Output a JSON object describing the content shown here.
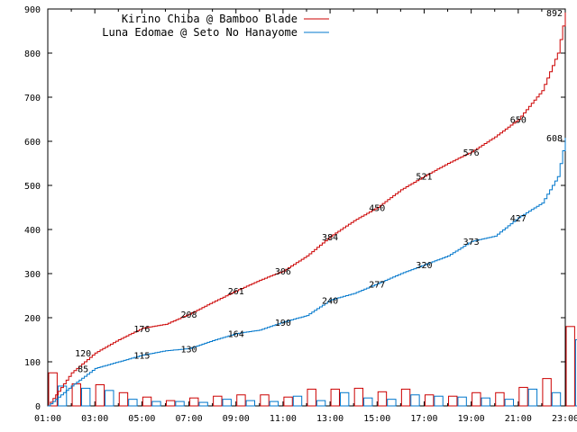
{
  "chart_data": {
    "type": "line",
    "title": "",
    "xlabel": "",
    "ylabel": "",
    "ylim": [
      0,
      900
    ],
    "yticks": [
      0,
      100,
      200,
      300,
      400,
      500,
      600,
      700,
      800,
      900
    ],
    "xticks": [
      "01:00",
      "03:00",
      "05:00",
      "07:00",
      "09:00",
      "11:00",
      "13:00",
      "15:00",
      "17:00",
      "19:00",
      "21:00",
      "23:00"
    ],
    "grid": false,
    "legend_position": "top-left",
    "colors": {
      "series1": "#cc0000",
      "series2": "#0077cc"
    },
    "series": [
      {
        "name": "Kirino Chiba @ Bamboo Blade",
        "cumulative": {
          "x": [
            "01:00",
            "02:00",
            "03:00",
            "04:00",
            "05:00",
            "06:00",
            "07:00",
            "08:00",
            "09:00",
            "10:00",
            "11:00",
            "12:00",
            "13:00",
            "14:00",
            "15:00",
            "16:00",
            "17:00",
            "18:00",
            "19:00",
            "20:00",
            "21:00",
            "22:00",
            "22:40",
            "23:00"
          ],
          "y": [
            0,
            75,
            120,
            150,
            176,
            185,
            208,
            235,
            261,
            285,
            306,
            340,
            384,
            420,
            450,
            490,
            521,
            550,
            576,
            610,
            650,
            715,
            800,
            892
          ]
        },
        "bars": [
          75,
          50,
          48,
          30,
          20,
          12,
          18,
          22,
          25,
          25,
          20,
          38,
          38,
          40,
          32,
          38,
          25,
          22,
          30,
          30,
          42,
          62,
          180
        ]
      },
      {
        "name": "Luna Edomae @ Seto No Hanayome",
        "cumulative": {
          "x": [
            "01:00",
            "02:00",
            "03:00",
            "04:00",
            "05:00",
            "06:00",
            "07:00",
            "08:00",
            "09:00",
            "10:00",
            "11:00",
            "12:00",
            "13:00",
            "14:00",
            "15:00",
            "16:00",
            "17:00",
            "18:00",
            "19:00",
            "20:00",
            "21:00",
            "22:00",
            "22:40",
            "23:00"
          ],
          "y": [
            0,
            45,
            85,
            100,
            115,
            125,
            130,
            148,
            164,
            172,
            190,
            205,
            240,
            255,
            277,
            300,
            320,
            340,
            373,
            385,
            427,
            460,
            520,
            608
          ]
        },
        "bars": [
          45,
          40,
          35,
          15,
          10,
          10,
          8,
          15,
          12,
          10,
          22,
          12,
          30,
          18,
          15,
          25,
          22,
          20,
          18,
          15,
          38,
          30,
          150
        ]
      }
    ],
    "annotations": [
      {
        "series": 0,
        "x": "02:30",
        "value": "120"
      },
      {
        "series": 0,
        "x": "05:00",
        "value": "176"
      },
      {
        "series": 0,
        "x": "07:00",
        "value": "208"
      },
      {
        "series": 0,
        "x": "09:00",
        "value": "261"
      },
      {
        "series": 0,
        "x": "11:00",
        "value": "306"
      },
      {
        "series": 0,
        "x": "13:00",
        "value": "384"
      },
      {
        "series": 0,
        "x": "15:00",
        "value": "450"
      },
      {
        "series": 0,
        "x": "17:00",
        "value": "521"
      },
      {
        "series": 0,
        "x": "19:00",
        "value": "576"
      },
      {
        "series": 0,
        "x": "21:00",
        "value": "650"
      },
      {
        "series": 0,
        "x": "23:00",
        "value": "892"
      },
      {
        "series": 1,
        "x": "02:30",
        "value": "85"
      },
      {
        "series": 1,
        "x": "05:00",
        "value": "115"
      },
      {
        "series": 1,
        "x": "07:00",
        "value": "130"
      },
      {
        "series": 1,
        "x": "09:00",
        "value": "164"
      },
      {
        "series": 1,
        "x": "11:00",
        "value": "190"
      },
      {
        "series": 1,
        "x": "13:00",
        "value": "240"
      },
      {
        "series": 1,
        "x": "15:00",
        "value": "277"
      },
      {
        "series": 1,
        "x": "17:00",
        "value": "320"
      },
      {
        "series": 1,
        "x": "19:00",
        "value": "373"
      },
      {
        "series": 1,
        "x": "21:00",
        "value": "427"
      },
      {
        "series": 1,
        "x": "23:00",
        "value": "608"
      }
    ]
  }
}
